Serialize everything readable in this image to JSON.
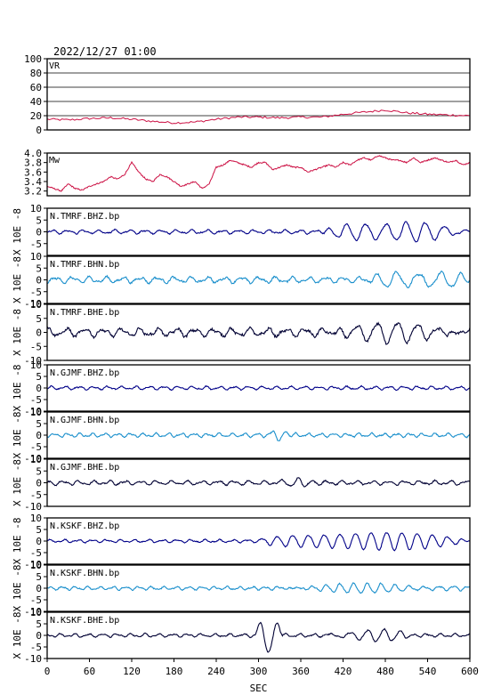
{
  "header": {
    "timestamp": "2022/12/27 01:00"
  },
  "chart_data": {
    "type": "line",
    "x_axis": {
      "label": "SEC",
      "range": [
        0,
        600
      ],
      "ticks": [
        "0",
        "60",
        "120",
        "180",
        "240",
        "300",
        "360",
        "420",
        "480",
        "540",
        "600"
      ]
    },
    "vr": {
      "label": "VR",
      "ylim": [
        0,
        100
      ],
      "yticks": [
        "0",
        "20",
        "40",
        "60",
        "80",
        "100"
      ],
      "grid": [
        20,
        40,
        60,
        80
      ],
      "color": "#cc1144",
      "x": [
        0,
        30,
        60,
        90,
        120,
        150,
        180,
        210,
        240,
        270,
        300,
        330,
        360,
        390,
        420,
        450,
        480,
        510,
        540,
        570,
        600
      ],
      "values": [
        15,
        14,
        16,
        17,
        15,
        12,
        10,
        11,
        15,
        18,
        18,
        17,
        18,
        18,
        22,
        25,
        28,
        24,
        22,
        21,
        20
      ]
    },
    "mw": {
      "label": "Mw",
      "ylim": [
        3.1,
        4.0
      ],
      "yticks": [
        "3.2",
        "3.4",
        "3.6",
        "3.8",
        "4.0"
      ],
      "color": "#cc1144",
      "x": [
        0,
        10,
        20,
        30,
        40,
        50,
        60,
        70,
        80,
        90,
        100,
        110,
        120,
        130,
        140,
        150,
        160,
        170,
        180,
        190,
        200,
        210,
        220,
        230,
        240,
        250,
        260,
        270,
        280,
        290,
        300,
        310,
        320,
        330,
        340,
        350,
        360,
        370,
        380,
        390,
        400,
        410,
        420,
        430,
        440,
        450,
        460,
        470,
        480,
        490,
        500,
        510,
        520,
        530,
        540,
        550,
        560,
        570,
        580,
        590,
        600
      ],
      "values": [
        3.3,
        3.25,
        3.2,
        3.35,
        3.25,
        3.22,
        3.3,
        3.35,
        3.4,
        3.5,
        3.45,
        3.55,
        3.8,
        3.6,
        3.45,
        3.4,
        3.55,
        3.5,
        3.4,
        3.3,
        3.35,
        3.4,
        3.25,
        3.35,
        3.7,
        3.75,
        3.85,
        3.8,
        3.75,
        3.7,
        3.8,
        3.8,
        3.65,
        3.7,
        3.75,
        3.7,
        3.7,
        3.6,
        3.65,
        3.7,
        3.75,
        3.7,
        3.8,
        3.75,
        3.85,
        3.9,
        3.85,
        3.95,
        3.9,
        3.85,
        3.85,
        3.8,
        3.9,
        3.8,
        3.85,
        3.9,
        3.85,
        3.8,
        3.85,
        3.75,
        3.8
      ]
    },
    "wave_panels": [
      {
        "label": "N.TMRF.BHZ.bp",
        "scale": "X 10E -8",
        "ylim": [
          -10,
          10
        ],
        "yticks": [
          "-5",
          "0",
          "5",
          "10"
        ],
        "color": "#000088",
        "base_amp": 0.9,
        "period": 22,
        "events": [
          {
            "start": 390,
            "end": 600,
            "amp": 3.8,
            "period": 28
          }
        ]
      },
      {
        "label": "N.TMRF.BHN.bp",
        "scale": "X 10E -8",
        "ylim": [
          -10,
          10
        ],
        "yticks": [
          "-10",
          "-5",
          "0",
          "5",
          "10"
        ],
        "color": "#1a8fcc",
        "base_amp": 1.4,
        "period": 24,
        "events": [
          {
            "start": 460,
            "end": 600,
            "amp": 3.5,
            "period": 30
          }
        ]
      },
      {
        "label": "N.TMRF.BHE.bp",
        "scale": "X 10E -8",
        "ylim": [
          -10,
          10
        ],
        "yticks": [
          "-10",
          "-5",
          "0",
          "5",
          "10"
        ],
        "color": "#000033",
        "base_amp": 1.6,
        "period": 26,
        "events": [
          {
            "start": 400,
            "end": 600,
            "amp": 2.5,
            "period": 30
          }
        ]
      },
      {
        "label": "N.GJMF.BHZ.bp",
        "scale": "X 10E -8",
        "ylim": [
          -10,
          10
        ],
        "yticks": [
          "-10",
          "-5",
          "0",
          "5",
          "10"
        ],
        "color": "#000088",
        "base_amp": 0.8,
        "period": 20,
        "events": []
      },
      {
        "label": "N.GJMF.BHN.bp",
        "scale": "X 10E -8",
        "ylim": [
          -10,
          10
        ],
        "yticks": [
          "-10",
          "-5",
          "0",
          "5",
          "10"
        ],
        "color": "#1a8fcc",
        "base_amp": 0.9,
        "period": 18,
        "events": [
          {
            "start": 315,
            "end": 345,
            "amp": 2.2,
            "period": 20
          }
        ]
      },
      {
        "label": "N.GJMF.BHE.bp",
        "scale": "X 10E -8",
        "ylim": [
          -10,
          10
        ],
        "yticks": [
          "-10",
          "-5",
          "0",
          "5",
          "10"
        ],
        "color": "#000033",
        "base_amp": 1.0,
        "period": 22,
        "events": [
          {
            "start": 330,
            "end": 380,
            "amp": 1.5,
            "period": 22
          }
        ]
      },
      {
        "label": "N.KSKF.BHZ.bp",
        "scale": "X 10E -8",
        "ylim": [
          -10,
          10
        ],
        "yticks": [
          "-10",
          "-5",
          "0",
          "5",
          "10"
        ],
        "color": "#000088",
        "base_amp": 0.7,
        "period": 20,
        "events": [
          {
            "start": 300,
            "end": 600,
            "amp": 3.6,
            "period": 22
          }
        ]
      },
      {
        "label": "N.KSKF.BHN.bp",
        "scale": "X 10E -8",
        "ylim": [
          -10,
          10
        ],
        "yticks": [
          "-10",
          "-5",
          "0",
          "5",
          "10"
        ],
        "color": "#1a8fcc",
        "base_amp": 0.8,
        "period": 18,
        "events": [
          {
            "start": 330,
            "end": 600,
            "amp": 1.6,
            "period": 20
          }
        ]
      },
      {
        "label": "N.KSKF.BHE.bp",
        "scale": "X 10E -8",
        "ylim": [
          -10,
          10
        ],
        "yticks": [
          "-10",
          "-5",
          "0",
          "5",
          "10"
        ],
        "color": "#000033",
        "base_amp": 0.8,
        "period": 20,
        "events": [
          {
            "start": 295,
            "end": 335,
            "amp": 7.5,
            "period": 26
          },
          {
            "start": 400,
            "end": 520,
            "amp": 2.2,
            "period": 24
          }
        ]
      }
    ]
  }
}
